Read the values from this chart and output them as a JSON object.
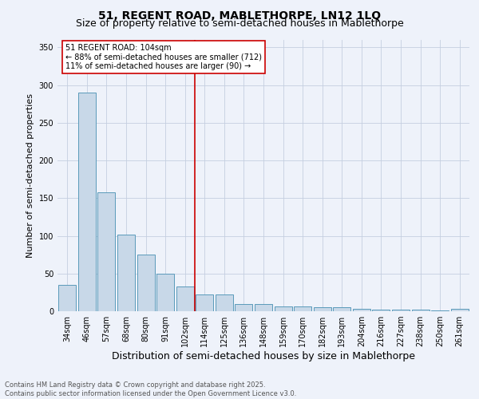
{
  "title": "51, REGENT ROAD, MABLETHORPE, LN12 1LQ",
  "subtitle": "Size of property relative to semi-detached houses in Mablethorpe",
  "xlabel": "Distribution of semi-detached houses by size in Mablethorpe",
  "ylabel": "Number of semi-detached properties",
  "categories": [
    "34sqm",
    "46sqm",
    "57sqm",
    "68sqm",
    "80sqm",
    "91sqm",
    "102sqm",
    "114sqm",
    "125sqm",
    "136sqm",
    "148sqm",
    "159sqm",
    "170sqm",
    "182sqm",
    "193sqm",
    "204sqm",
    "216sqm",
    "227sqm",
    "238sqm",
    "250sqm",
    "261sqm"
  ],
  "values": [
    35,
    290,
    158,
    102,
    75,
    50,
    33,
    22,
    22,
    10,
    10,
    6,
    6,
    5,
    5,
    3,
    2,
    2,
    2,
    1,
    3
  ],
  "bar_color": "#c8d8e8",
  "bar_edge_color": "#5a9aba",
  "vline_x_index": 6,
  "vline_color": "#cc0000",
  "annotation_text": "51 REGENT ROAD: 104sqm\n← 88% of semi-detached houses are smaller (712)\n11% of semi-detached houses are larger (90) →",
  "annotation_box_color": "#ffffff",
  "annotation_box_edge": "#cc0000",
  "footnote": "Contains HM Land Registry data © Crown copyright and database right 2025.\nContains public sector information licensed under the Open Government Licence v3.0.",
  "bg_color": "#eef2fa",
  "grid_color": "#c5cfe0",
  "ylim": [
    0,
    360
  ],
  "yticks": [
    0,
    50,
    100,
    150,
    200,
    250,
    300,
    350
  ],
  "title_fontsize": 10,
  "subtitle_fontsize": 9,
  "axis_label_fontsize": 8,
  "tick_fontsize": 7,
  "footnote_fontsize": 6
}
